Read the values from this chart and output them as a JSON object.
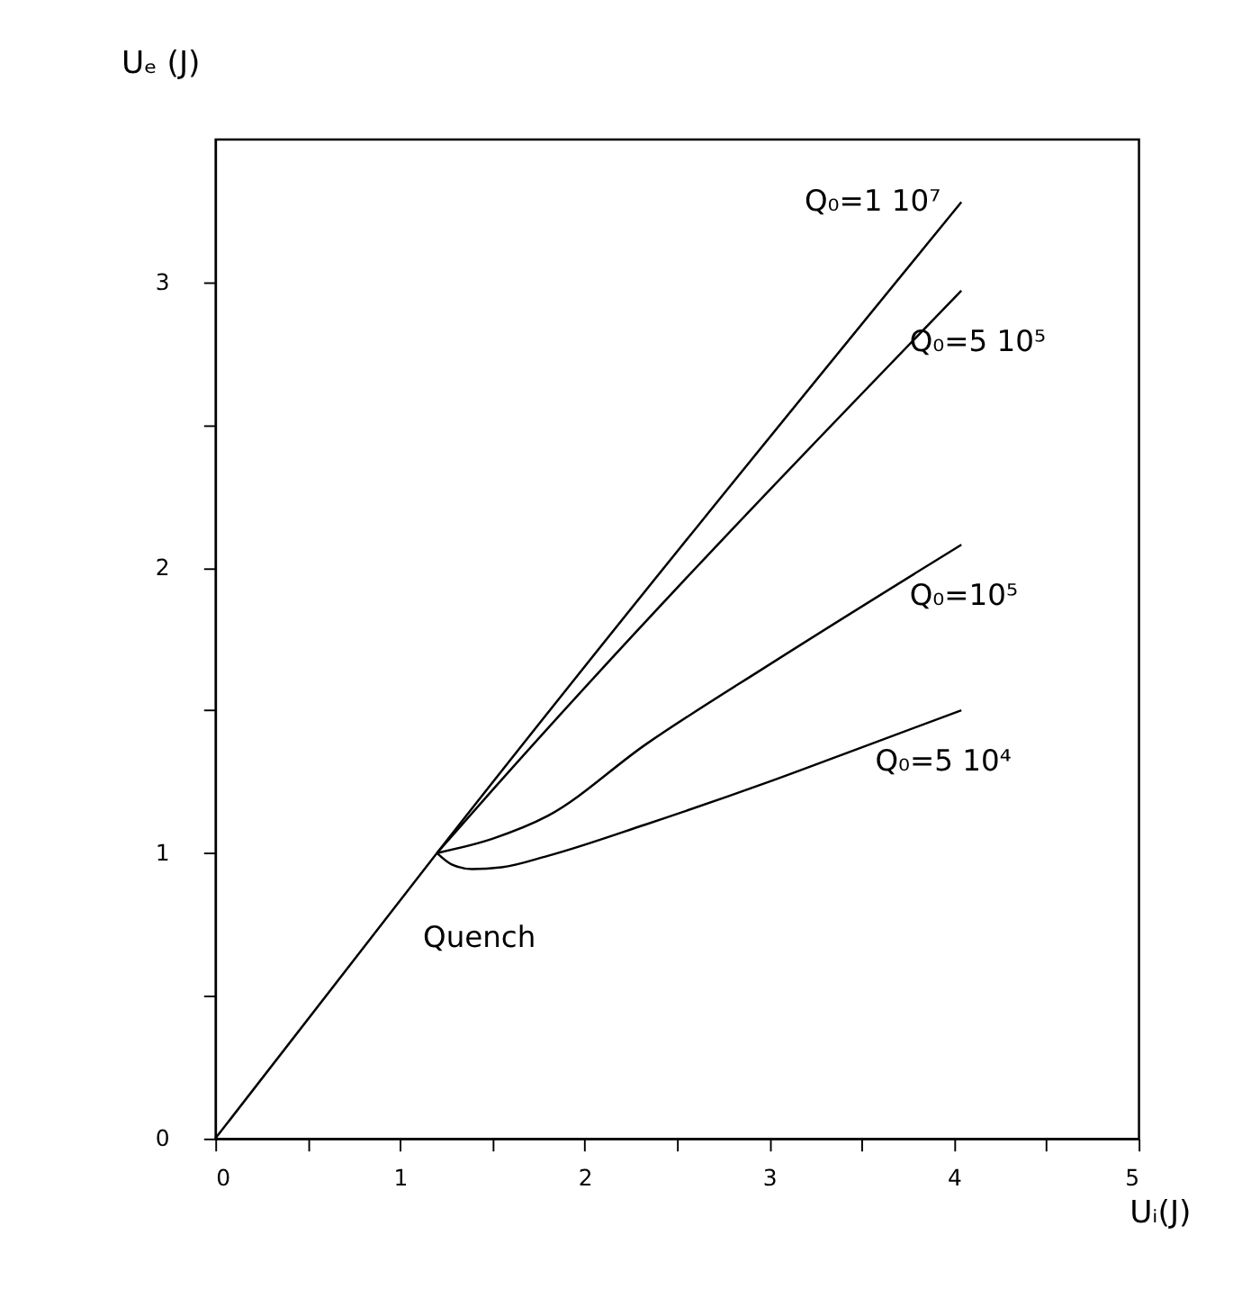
{
  "chart_data": {
    "type": "line",
    "xlabel": "Uᵢ(J)",
    "ylabel": "Uₑ (J)",
    "xlim": [
      0,
      5
    ],
    "ylim": [
      0,
      3.5
    ],
    "xticks": [
      0,
      {
        "value": 0.5,
        "label": null
      },
      1,
      {
        "value": 1.5,
        "label": null
      },
      2,
      {
        "value": 2.5,
        "label": null
      },
      3,
      {
        "value": 3.5,
        "label": null
      },
      4,
      {
        "value": 4.5,
        "label": null
      },
      5
    ],
    "yticks": [
      0,
      {
        "value": 0.5,
        "label": null
      },
      1,
      {
        "value": 1.5,
        "label": null
      },
      2,
      {
        "value": 2.5,
        "label": null
      },
      3
    ],
    "grid": false,
    "marker": "none",
    "line_style": "solid",
    "series": [
      {
        "name": "Q₀=1 10⁷",
        "color": "#000000",
        "x": [
          0,
          1.2,
          4.04
        ],
        "values": [
          0,
          1.0,
          3.28
        ]
      },
      {
        "name": "Q₀=5 10⁵",
        "color": "#000000",
        "x": [
          1.2,
          1.5,
          4.04
        ],
        "values": [
          1.0,
          1.22,
          2.97
        ]
      },
      {
        "name": "Q₀=10⁵",
        "color": "#000000",
        "x": [
          1.2,
          1.5,
          1.8,
          2.33,
          3,
          4.04
        ],
        "values": [
          1.0,
          1.05,
          1.13,
          1.38,
          1.66,
          2.08
        ]
      },
      {
        "name": "Q₀=5 10⁴",
        "color": "#000000",
        "x": [
          1.2,
          1.28,
          1.39,
          1.55,
          1.8,
          2.33,
          3,
          3.5,
          4.04
        ],
        "values": [
          1.0,
          0.96,
          0.944,
          0.95,
          0.99,
          1.1,
          1.25,
          1.37,
          1.5
        ]
      }
    ],
    "annotations": [
      "Quench"
    ]
  }
}
